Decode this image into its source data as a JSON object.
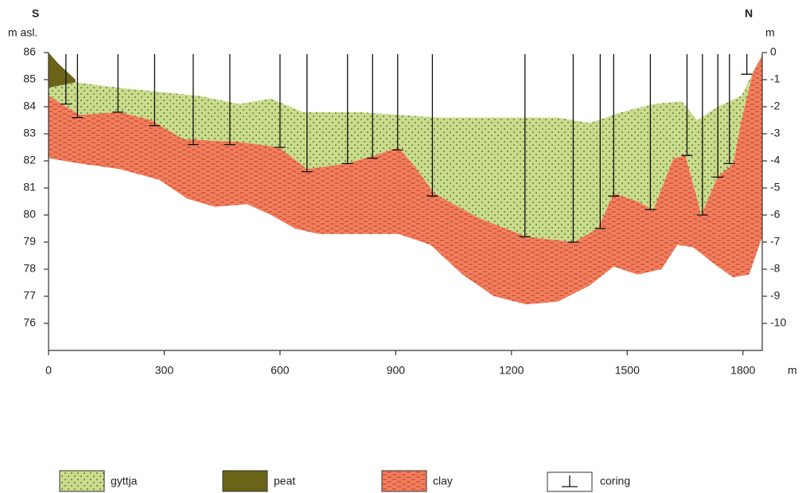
{
  "chart_data": {
    "type": "cross-section",
    "left_title": "S",
    "left_unit": "m asl.",
    "right_title": "N",
    "right_unit": "m",
    "x_unit": "m",
    "xlim": [
      0,
      1850
    ],
    "xticks": [
      0,
      300,
      600,
      900,
      1200,
      1500,
      1800
    ],
    "ylim": [
      75,
      86
    ],
    "yticks": [
      76,
      77,
      78,
      79,
      80,
      81,
      82,
      83,
      84,
      85,
      86
    ],
    "y2lim": [
      -11,
      0
    ],
    "y2ticks": [
      -10,
      -9,
      -8,
      -7,
      -6,
      -5,
      -4,
      -3,
      -2,
      -1,
      0
    ],
    "layers": [
      {
        "name": "gyttja",
        "color": "#cbdb8c",
        "x": [
          0,
          70,
          184,
          391,
          494,
          577,
          659,
          804,
          1011,
          1320,
          1403,
          1486,
          1568,
          1641,
          1682,
          1734,
          1796,
          1827,
          1796,
          1775,
          1734,
          1692,
          1651,
          1620,
          1568,
          1527,
          1465,
          1424,
          1362,
          1238,
          1114,
          1000,
          949,
          907,
          845,
          773,
          670,
          597,
          494,
          349,
          267,
          184,
          81,
          0
        ],
        "y": [
          84.7,
          84.9,
          84.7,
          84.4,
          84.1,
          84.3,
          83.8,
          83.8,
          83.6,
          83.6,
          83.4,
          83.8,
          84.1,
          84.2,
          83.5,
          84.0,
          84.4,
          85.3,
          83.5,
          81.9,
          81.4,
          80.0,
          82.2,
          82.1,
          80.2,
          80.5,
          80.8,
          79.5,
          79.0,
          79.2,
          79.9,
          80.8,
          81.8,
          82.5,
          82.2,
          81.9,
          81.7,
          82.5,
          82.7,
          82.8,
          83.5,
          83.8,
          83.7,
          84.4
        ]
      },
      {
        "name": "peat",
        "color": "#6b6418",
        "x": [
          0,
          25,
          70,
          70,
          0
        ],
        "y": [
          86.0,
          85.6,
          85.0,
          84.9,
          84.7
        ]
      },
      {
        "name": "clay",
        "color": "#f07f5c",
        "x": [
          0,
          81,
          184,
          267,
          349,
          494,
          597,
          670,
          773,
          845,
          907,
          949,
          1000,
          1114,
          1238,
          1362,
          1424,
          1465,
          1527,
          1568,
          1620,
          1651,
          1692,
          1734,
          1775,
          1796,
          1827,
          1850,
          1850,
          1816,
          1775,
          1734,
          1672,
          1630,
          1589,
          1527,
          1465,
          1403,
          1320,
          1238,
          1155,
          1073,
          990,
          907,
          804,
          700,
          639,
          577,
          515,
          432,
          360,
          287,
          184,
          81,
          0
        ],
        "y": [
          84.4,
          83.7,
          83.8,
          83.5,
          82.8,
          82.7,
          82.5,
          81.7,
          81.9,
          82.2,
          82.5,
          81.8,
          80.8,
          79.9,
          79.2,
          79.0,
          79.5,
          80.8,
          80.5,
          80.2,
          82.1,
          82.2,
          80.0,
          81.4,
          81.9,
          83.5,
          85.3,
          85.9,
          79.2,
          77.8,
          77.7,
          78.1,
          78.8,
          78.9,
          78.0,
          77.8,
          78.1,
          77.4,
          76.8,
          76.7,
          77.0,
          77.8,
          78.9,
          79.3,
          79.3,
          79.3,
          79.5,
          80.0,
          80.4,
          80.3,
          80.6,
          81.3,
          81.7,
          81.9,
          82.1
        ]
      }
    ],
    "corings": {
      "name": "coring",
      "x": [
        45,
        75,
        180,
        275,
        375,
        470,
        600,
        670,
        775,
        840,
        905,
        995,
        1235,
        1360,
        1430,
        1465,
        1560,
        1655,
        1695,
        1735,
        1765,
        1810
      ],
      "bottom": [
        84.1,
        83.6,
        83.8,
        83.3,
        82.6,
        82.6,
        82.5,
        81.6,
        81.9,
        82.1,
        82.4,
        80.7,
        79.2,
        79.0,
        79.5,
        80.7,
        80.2,
        82.2,
        80.0,
        81.4,
        81.9,
        85.2
      ]
    }
  }
}
